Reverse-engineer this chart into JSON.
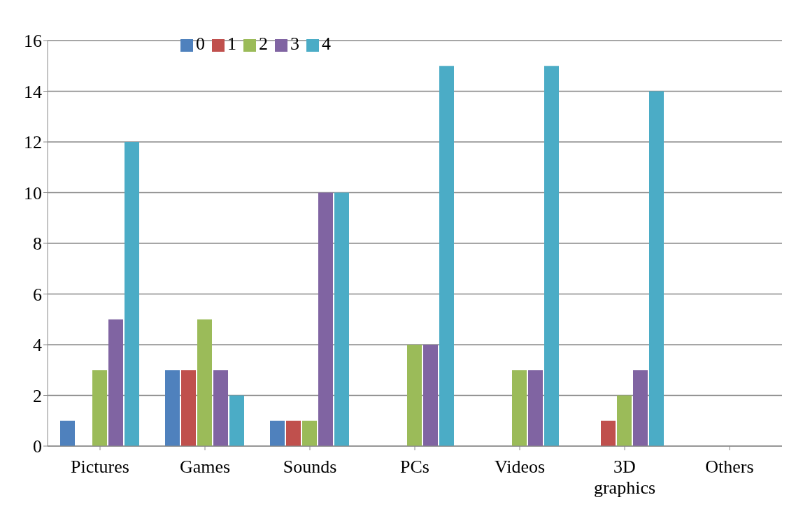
{
  "chart_data": {
    "type": "bar",
    "categories": [
      "Pictures",
      "Games",
      "Sounds",
      "PCs",
      "Videos",
      "3D graphics",
      "Others"
    ],
    "series": [
      {
        "name": "0",
        "color": "#4f81bd",
        "values": [
          1,
          3,
          1,
          0,
          0,
          0,
          0
        ]
      },
      {
        "name": "1",
        "color": "#c0504d",
        "values": [
          0,
          3,
          1,
          0,
          0,
          1,
          0
        ]
      },
      {
        "name": "2",
        "color": "#9bbb59",
        "values": [
          3,
          5,
          1,
          4,
          3,
          2,
          0
        ]
      },
      {
        "name": "3",
        "color": "#8064a2",
        "values": [
          5,
          3,
          10,
          4,
          3,
          3,
          0
        ]
      },
      {
        "name": "4",
        "color": "#4bacc6",
        "values": [
          12,
          2,
          10,
          15,
          15,
          14,
          0
        ]
      }
    ],
    "ylim": [
      0,
      16
    ],
    "yticks": [
      0,
      2,
      4,
      6,
      8,
      10,
      12,
      14,
      16
    ],
    "grid": "y",
    "legend": "top"
  }
}
